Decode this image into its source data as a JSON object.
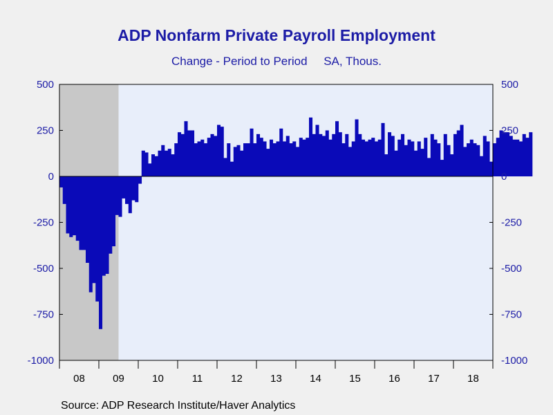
{
  "title": "ADP Nonfarm Private Payroll Employment",
  "subtitle": "Change - Period to Period     SA, Thous.",
  "source": "Source:  ADP Research Institute/Haver Analytics",
  "colors": {
    "bar": "#0a0ab8",
    "plot_bg": "#e8eefa",
    "recession": "#c8c8c8",
    "text": "#1c1ca6"
  },
  "chart_data": {
    "type": "bar",
    "title": "ADP Nonfarm Private Payroll Employment",
    "subtitle": "Change - Period to Period     SA, Thous.",
    "xlabel": "",
    "ylabel": "",
    "ylim": [
      -1000,
      500
    ],
    "yticks": [
      500,
      250,
      0,
      -250,
      -500,
      -750,
      -1000
    ],
    "x_tick_labels": [
      "08",
      "09",
      "10",
      "11",
      "12",
      "13",
      "14",
      "15",
      "16",
      "17",
      "18"
    ],
    "x_start": "2008-01",
    "x_end": "2018-12",
    "recession": {
      "start": "2008-01",
      "end": "2009-06"
    },
    "grid": false,
    "legend": "none",
    "series": [
      {
        "values": [
          -60,
          -150,
          -310,
          -330,
          -320,
          -350,
          -400,
          -400,
          -470,
          -630,
          -580,
          -680,
          -830,
          -540,
          -530,
          -420,
          -380,
          -210,
          -220,
          -120,
          -150,
          -200,
          -130,
          -140,
          -40,
          140,
          130,
          70,
          120,
          110,
          140,
          170,
          140,
          150,
          120,
          180,
          240,
          230,
          300,
          250,
          250,
          180,
          190,
          200,
          180,
          210,
          230,
          220,
          280,
          270,
          100,
          180,
          80,
          160,
          170,
          140,
          180,
          180,
          260,
          180,
          230,
          210,
          190,
          150,
          200,
          180,
          190,
          260,
          190,
          220,
          180,
          190,
          160,
          210,
          200,
          210,
          320,
          230,
          280,
          230,
          220,
          250,
          200,
          230,
          300,
          240,
          180,
          230,
          160,
          190,
          310,
          230,
          200,
          190,
          200,
          210,
          190,
          200,
          290,
          120,
          240,
          220,
          140,
          200,
          230,
          170,
          200,
          190,
          140,
          190,
          150,
          210,
          100,
          230,
          200,
          180,
          90,
          230,
          170,
          120,
          230,
          250,
          280,
          160,
          180,
          200,
          180,
          170,
          110,
          220,
          190,
          80,
          180,
          210,
          250,
          240,
          240,
          220,
          200,
          200,
          190,
          230,
          210,
          240
        ]
      }
    ]
  }
}
